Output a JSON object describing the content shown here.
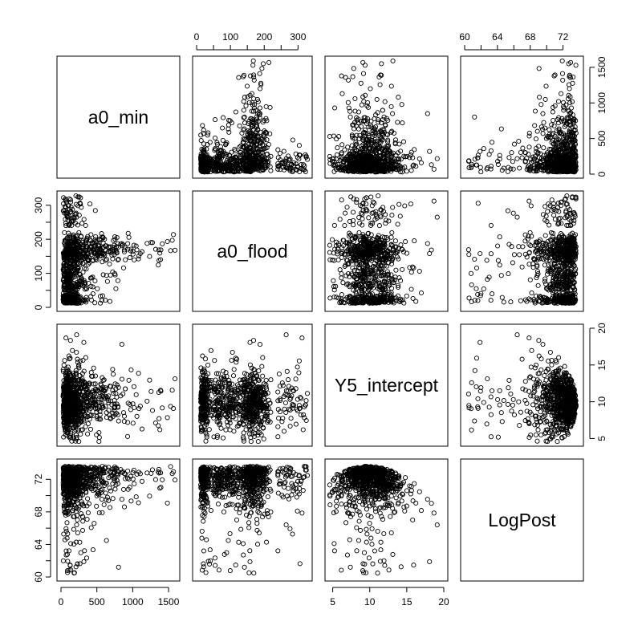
{
  "chart_data": {
    "type": "scatter",
    "plot_kind": "pairs-scatterplot-matrix",
    "variables": [
      {
        "name": "a0_min",
        "range": [
          0,
          1600
        ],
        "ticks": [
          0,
          500,
          1000,
          1500
        ],
        "tick_labels": [
          "0",
          "500",
          "1000",
          "1500"
        ]
      },
      {
        "name": "a0_flood",
        "range": [
          0,
          330
        ],
        "ticks": [
          0,
          100,
          200,
          300
        ],
        "tick_labels": [
          "0",
          "100",
          "200",
          "300"
        ]
      },
      {
        "name": "Y5_intercept",
        "range": [
          4.5,
          20
        ],
        "ticks": [
          5,
          10,
          15,
          20
        ],
        "tick_labels": [
          "5",
          "10",
          "15",
          "20"
        ]
      },
      {
        "name": "LogPost",
        "range": [
          60,
          74
        ],
        "ticks": [
          60,
          64,
          68,
          72
        ],
        "tick_labels": [
          "60",
          "64",
          "68",
          "72"
        ]
      }
    ],
    "distributions": {
      "a0_min": "right-skewed, mostly 20-500, tail to ~1580",
      "a0_flood": "clusters near 15-25, 50-150 and 180-230, max ~330",
      "Y5_intercept": "centered ~10, range ~4.5-20",
      "LogPost": "mostly 69-74, tail down to ~60"
    },
    "approx_points_per_panel": 900,
    "grid": false,
    "legend": "none"
  }
}
